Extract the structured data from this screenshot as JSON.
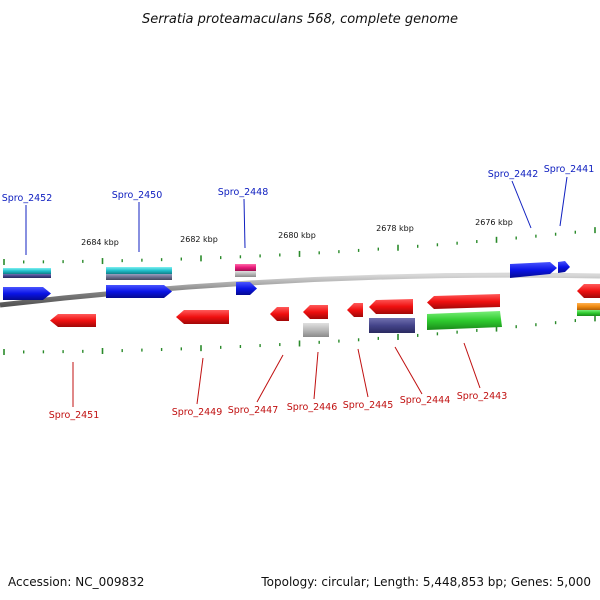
{
  "title": "Serratia proteamaculans 568, complete genome",
  "footer": {
    "accession": "Accession: NC_009832",
    "stats": "Topology: circular; Length: 5,448,853 bp; Genes: 5,000"
  },
  "colors": {
    "forward_gene": "#0a14e6",
    "forward_label": "#1020c0",
    "reverse_gene": "#f01010",
    "reverse_label": "#c01010",
    "rna": "#e8197a",
    "orange": "#f08a10",
    "tick": "#2a8a2a",
    "backbone": "#888888"
  },
  "scale": {
    "unit": "kbp",
    "labels": [
      "2684 kbp",
      "2682 kbp",
      "2680 kbp",
      "2678 kbp",
      "2676 kbp"
    ]
  },
  "forward_labels": [
    "Spro_2452",
    "Spro_2450",
    "Spro_2448",
    "Spro_2442",
    "Spro_2441"
  ],
  "reverse_labels": [
    "Spro_2451",
    "Spro_2449",
    "Spro_2447",
    "Spro_2446",
    "Spro_2445",
    "Spro_2444",
    "Spro_2443"
  ]
}
